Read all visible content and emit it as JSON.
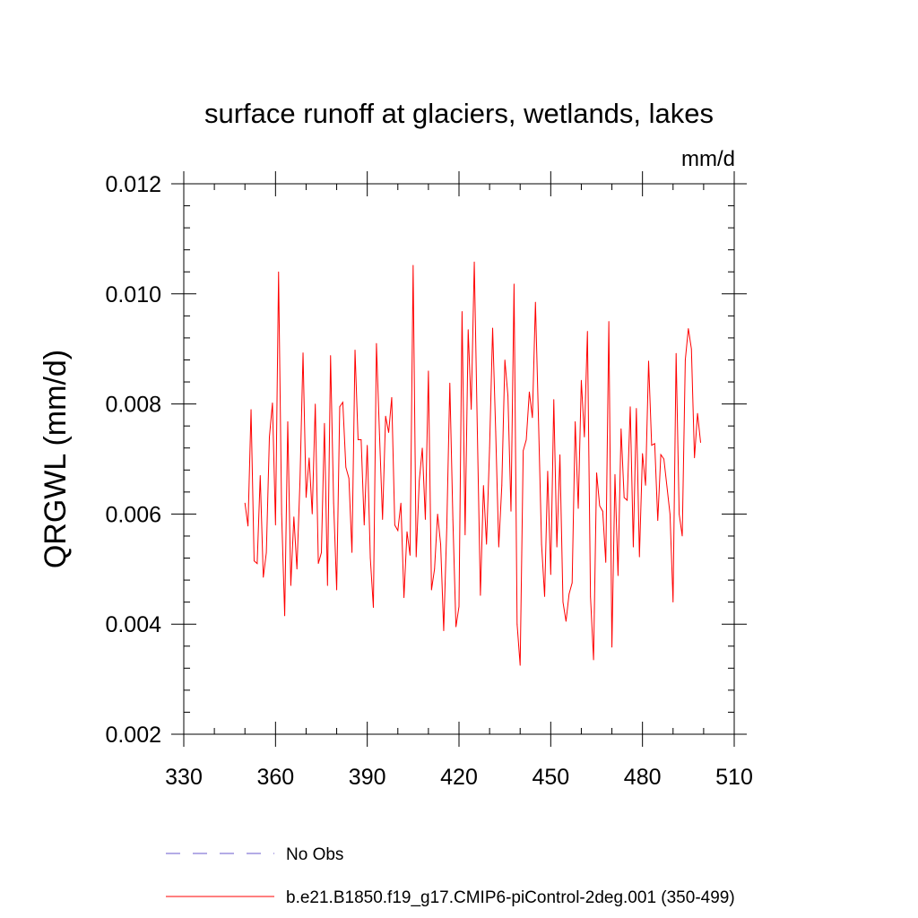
{
  "chart_data": {
    "type": "line",
    "title": "surface runoff at glaciers, wetlands, lakes",
    "units": "mm/d",
    "xlabel": "",
    "ylabel": "QRGWL  (mm/d)",
    "xlim": [
      330,
      510
    ],
    "ylim": [
      0.002,
      0.012
    ],
    "xticks": [
      330,
      360,
      390,
      420,
      450,
      480,
      510
    ],
    "xtick_labels": [
      "330",
      "360",
      "390",
      "420",
      "450",
      "480",
      "510"
    ],
    "yticks": [
      0.002,
      0.004,
      0.006,
      0.008,
      0.01,
      0.012
    ],
    "ytick_labels": [
      "0.002",
      "0.004",
      "0.006",
      "0.008",
      "0.010",
      "0.012"
    ],
    "grid": false,
    "legend_position": "bottom",
    "series": [
      {
        "name": "No Obs",
        "color": "#6a5acd",
        "dash": "dashed",
        "x": [],
        "y": []
      },
      {
        "name": "b.e21.B1850.f19_g17.CMIP6-piControl-2deg.001 (350-499)",
        "color": "#ff0000",
        "dash": "solid",
        "x": [
          350,
          351,
          352,
          353,
          354,
          355,
          356,
          357,
          358,
          359,
          360,
          361,
          362,
          363,
          364,
          365,
          366,
          367,
          368,
          369,
          370,
          371,
          372,
          373,
          374,
          375,
          376,
          377,
          378,
          379,
          380,
          381,
          382,
          383,
          384,
          385,
          386,
          387,
          388,
          389,
          390,
          391,
          392,
          393,
          394,
          395,
          396,
          397,
          398,
          399,
          400,
          401,
          402,
          403,
          404,
          405,
          406,
          407,
          408,
          409,
          410,
          411,
          412,
          413,
          414,
          415,
          416,
          417,
          418,
          419,
          420,
          421,
          422,
          423,
          424,
          425,
          426,
          427,
          428,
          429,
          430,
          431,
          432,
          433,
          434,
          435,
          436,
          437,
          438,
          439,
          440,
          441,
          442,
          443,
          444,
          445,
          446,
          447,
          448,
          449,
          450,
          451,
          452,
          453,
          454,
          455,
          456,
          457,
          458,
          459,
          460,
          461,
          462,
          463,
          464,
          465,
          466,
          467,
          468,
          469,
          470,
          471,
          472,
          473,
          474,
          475,
          476,
          477,
          478,
          479,
          480,
          481,
          482,
          483,
          484,
          485,
          486,
          487,
          488,
          489,
          490,
          491,
          492,
          493,
          494,
          495,
          496,
          497,
          498,
          499
        ],
        "y": [
          0.0062,
          0.00578,
          0.0079,
          0.00515,
          0.0051,
          0.0067,
          0.00485,
          0.0053,
          0.0074,
          0.00802,
          0.0058,
          0.0104,
          0.006,
          0.00415,
          0.00768,
          0.0047,
          0.00595,
          0.005,
          0.0066,
          0.00893,
          0.0063,
          0.00702,
          0.006,
          0.008,
          0.0051,
          0.0053,
          0.00765,
          0.0047,
          0.00888,
          0.0062,
          0.00462,
          0.00795,
          0.00803,
          0.00685,
          0.00665,
          0.0053,
          0.00898,
          0.00735,
          0.00735,
          0.0058,
          0.00725,
          0.0052,
          0.0043,
          0.0091,
          0.00745,
          0.0059,
          0.00778,
          0.00748,
          0.00812,
          0.0058,
          0.0057,
          0.0062,
          0.00448,
          0.00568,
          0.00525,
          0.01052,
          0.00522,
          0.0066,
          0.0072,
          0.0059,
          0.0086,
          0.00462,
          0.005,
          0.006,
          0.00545,
          0.00388,
          0.00575,
          0.00838,
          0.0059,
          0.00395,
          0.00432,
          0.00968,
          0.00562,
          0.00935,
          0.0079,
          0.01058,
          0.0075,
          0.00452,
          0.00652,
          0.00545,
          0.0072,
          0.00938,
          0.0075,
          0.0054,
          0.00652,
          0.0088,
          0.00815,
          0.00605,
          0.01018,
          0.004,
          0.00325,
          0.00715,
          0.00735,
          0.00822,
          0.00775,
          0.00985,
          0.0077,
          0.00545,
          0.0045,
          0.00678,
          0.0049,
          0.00808,
          0.0054,
          0.00708,
          0.0044,
          0.00405,
          0.00455,
          0.00475,
          0.00768,
          0.0061,
          0.00843,
          0.0074,
          0.00932,
          0.0045,
          0.00335,
          0.00675,
          0.00615,
          0.00605,
          0.00512,
          0.0095,
          0.00358,
          0.00672,
          0.00488,
          0.00755,
          0.0063,
          0.00625,
          0.00795,
          0.0054,
          0.00792,
          0.00522,
          0.0071,
          0.00652,
          0.00878,
          0.00725,
          0.00728,
          0.00588,
          0.00708,
          0.007,
          0.0065,
          0.006,
          0.0044,
          0.00892,
          0.006,
          0.0056,
          0.0088,
          0.00937,
          0.009,
          0.00702,
          0.00783,
          0.0073
        ]
      }
    ]
  }
}
